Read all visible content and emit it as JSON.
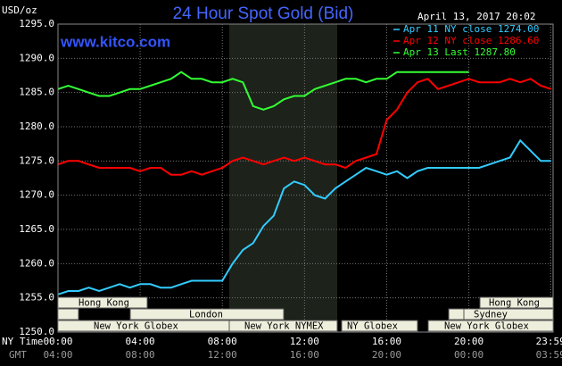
{
  "chart_data": {
    "type": "line",
    "title": "24 Hour Spot Gold (Bid)",
    "y_unit": "USD/oz",
    "date": "April 13, 2017 20:02",
    "watermark": "www.kitco.com",
    "x_label": "NY Time",
    "x2_label": "GMT",
    "x": [
      0,
      0.5,
      1,
      1.5,
      2,
      2.5,
      3,
      3.5,
      4,
      4.5,
      5,
      5.5,
      6,
      6.5,
      7,
      7.5,
      8,
      8.5,
      9,
      9.5,
      10,
      10.5,
      11,
      11.5,
      12,
      12.5,
      13,
      13.5,
      14,
      14.5,
      15,
      15.5,
      16,
      16.5,
      17,
      17.5,
      18,
      18.5,
      19,
      19.5,
      20,
      20.5,
      21,
      21.5,
      22,
      22.5,
      23,
      23.5,
      24
    ],
    "series": [
      {
        "name": "Apr 11 NY close 1274.00",
        "color": "#33ccff",
        "values": [
          1255.5,
          1256,
          1256,
          1256.5,
          1256,
          1256.5,
          1257,
          1256.5,
          1257,
          1257,
          1256.5,
          1256.5,
          1257,
          1257.5,
          1257.5,
          1257.5,
          1257.5,
          1260,
          1262,
          1263,
          1265.5,
          1267,
          1271,
          1272,
          1271.5,
          1270,
          1269.5,
          1271,
          1272,
          1273,
          1274,
          1273.5,
          1273,
          1273.5,
          1272.5,
          1273.5,
          1274,
          1274,
          1274,
          1274,
          1274,
          1274,
          1274.5,
          1275,
          1275.5,
          1278,
          1276.5,
          1275,
          1275
        ]
      },
      {
        "name": "Apr 12 NY close 1286.60",
        "color": "#ff0000",
        "values": [
          1274.5,
          1275,
          1275,
          1274.5,
          1274,
          1274,
          1274,
          1274,
          1273.5,
          1274,
          1274,
          1273,
          1273,
          1273.5,
          1273,
          1273.5,
          1274,
          1275,
          1275.5,
          1275,
          1274.5,
          1275,
          1275.5,
          1275,
          1275.5,
          1275,
          1274.5,
          1274.5,
          1274,
          1275,
          1275.5,
          1276,
          1281,
          1282.5,
          1285,
          1286.5,
          1287,
          1285.5,
          1286,
          1286.5,
          1287,
          1286.5,
          1286.5,
          1286.5,
          1287,
          1286.5,
          1287,
          1286,
          1285.5
        ]
      },
      {
        "name": "Apr 13 Last 1287.80",
        "color": "#33ff33",
        "values": [
          1285.5,
          1286,
          1285.5,
          1285,
          1284.5,
          1284.5,
          1285,
          1285.5,
          1285.5,
          1286,
          1286.5,
          1287,
          1288,
          1287,
          1287,
          1286.5,
          1286.5,
          1287,
          1286.5,
          1283,
          1282.5,
          1283,
          1284,
          1284.5,
          1284.5,
          1285.5,
          1286,
          1286.5,
          1287,
          1287,
          1286.5,
          1287,
          1287,
          1288,
          1288,
          1288,
          1288,
          1288,
          1288,
          1288,
          1288,
          null,
          null,
          null,
          null,
          null,
          null,
          null,
          null
        ]
      }
    ],
    "xlim": [
      0,
      24.1
    ],
    "xticks": [
      {
        "value": 0,
        "label": "00:00"
      },
      {
        "value": 4,
        "label": "04:00"
      },
      {
        "value": 8,
        "label": "08:00"
      },
      {
        "value": 12,
        "label": "12:00"
      },
      {
        "value": 16,
        "label": "16:00"
      },
      {
        "value": 20,
        "label": "20:00"
      },
      {
        "value": 23.98,
        "label": "23:59"
      }
    ],
    "x2ticks": [
      {
        "value": 0,
        "label": "04:00"
      },
      {
        "value": 4,
        "label": "08:00"
      },
      {
        "value": 8,
        "label": "12:00"
      },
      {
        "value": 12,
        "label": "16:00"
      },
      {
        "value": 16,
        "label": "20:00"
      },
      {
        "value": 20,
        "label": "00:00"
      },
      {
        "value": 23.98,
        "label": "03:59"
      }
    ],
    "ylim": [
      1250,
      1295
    ],
    "yticks": [
      {
        "value": 1250,
        "label": "1250.0"
      },
      {
        "value": 1255,
        "label": "1255.0"
      },
      {
        "value": 1260,
        "label": "1260.0"
      },
      {
        "value": 1265,
        "label": "1265.0"
      },
      {
        "value": 1270,
        "label": "1270.0"
      },
      {
        "value": 1275,
        "label": "1275.0"
      },
      {
        "value": 1280,
        "label": "1280.0"
      },
      {
        "value": 1285,
        "label": "1285.0"
      },
      {
        "value": 1290,
        "label": "1290.0"
      },
      {
        "value": 1295,
        "label": "1295.0"
      }
    ],
    "grid": true,
    "sessions": [
      "Hong Kong",
      "London",
      "New York Globex",
      "New York NYMEX",
      "NY Globex",
      "Hong Kong",
      "Sydney",
      "New York Globex"
    ]
  }
}
